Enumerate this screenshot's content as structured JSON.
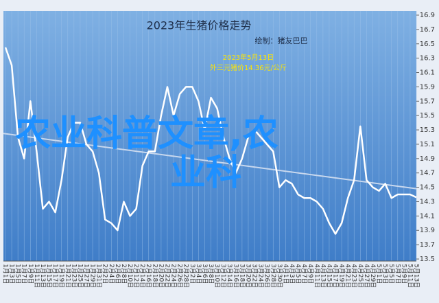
{
  "chart_data": {
    "type": "line",
    "title": "2023年生猪价格走势",
    "subtitle": "绘制：猪友巴巴",
    "annotation": [
      "2023年5月13日",
      "外三元猪价14.36元/公斤"
    ],
    "watermark": [
      "农业科普文章,农",
      "业科"
    ],
    "categories": [
      "1月1日",
      "1月3日",
      "1月5日",
      "1月7日",
      "1月9日",
      "1月11日",
      "1月13日",
      "1月15日",
      "1月17日",
      "1月19日",
      "1月21日",
      "1月23日",
      "1月25日",
      "1月27日",
      "1月29日",
      "1月31日",
      "2月2日",
      "2月4日",
      "2月6日",
      "2月8日",
      "2月10日",
      "2月12日",
      "2月14日",
      "2月16日",
      "2月18日",
      "2月20日",
      "2月22日",
      "2月24日",
      "2月26日",
      "2月28日",
      "3月2日",
      "3月4日",
      "3月6日",
      "3月8日",
      "3月10日",
      "3月12日",
      "3月14日",
      "3月16日",
      "3月18日",
      "3月20日",
      "3月22日",
      "3月24日",
      "3月26日",
      "3月28日",
      "3月30日",
      "4月1日",
      "4月3日",
      "4月5日",
      "4月7日",
      "4月9日",
      "4月11日",
      "4月13日",
      "4月15日",
      "4月17日",
      "4月19日",
      "4月21日",
      "4月23日",
      "4月25日",
      "4月27日",
      "4月29日",
      "5月1日",
      "5月3日",
      "5月5日",
      "5月7日",
      "5月9日",
      "5月11日",
      "5月13日"
    ],
    "series": [
      {
        "color": "#ffffff",
        "values": [
          16.45,
          16.2,
          15.2,
          14.9,
          15.7,
          15.0,
          14.2,
          14.3,
          14.15,
          14.6,
          15.2,
          15.4,
          15.4,
          15.1,
          15.0,
          14.7,
          14.05,
          14.0,
          13.9,
          14.3,
          14.1,
          14.2,
          14.8,
          15.0,
          15.0,
          15.5,
          15.9,
          15.5,
          15.8,
          15.9,
          15.9,
          15.7,
          15.3,
          15.75,
          15.6,
          15.2,
          14.9,
          14.7,
          14.9,
          15.2,
          15.3,
          15.2,
          15.1,
          15.0,
          14.5,
          14.6,
          14.55,
          14.4,
          14.35,
          14.35,
          14.3,
          14.2,
          14.0,
          13.85,
          14.0,
          14.35,
          14.6,
          15.35,
          14.6,
          14.5,
          14.45,
          14.55,
          14.35,
          14.4,
          14.4,
          14.4,
          14.36
        ]
      }
    ],
    "trendline": {
      "color": "#c8d8ee",
      "values": [
        15.25,
        14.48
      ]
    },
    "ylim": [
      13.5,
      16.9
    ],
    "yticks": [
      13.5,
      13.7,
      13.9,
      14.1,
      14.3,
      14.5,
      14.7,
      14.9,
      15.1,
      15.3,
      15.5,
      15.7,
      15.9,
      16.1,
      16.3,
      16.5,
      16.7,
      16.9
    ],
    "grid": true
  }
}
